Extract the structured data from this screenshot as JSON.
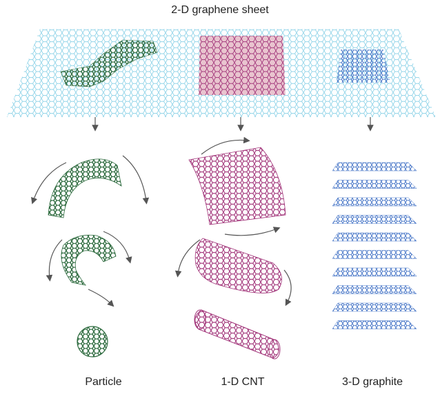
{
  "title": "2-D graphene sheet",
  "labels": {
    "particle": "Particle",
    "cnt": "1-D CNT",
    "graphite": "3-D graphite"
  },
  "colors": {
    "sheet": "#8fd3e8",
    "particle": "#2e6b3f",
    "cnt": "#a2357a",
    "cnt_patch": "#e9c4cf",
    "graphite": "#4a78c8",
    "arrow": "#555555"
  },
  "graphite_layer_count": 10
}
